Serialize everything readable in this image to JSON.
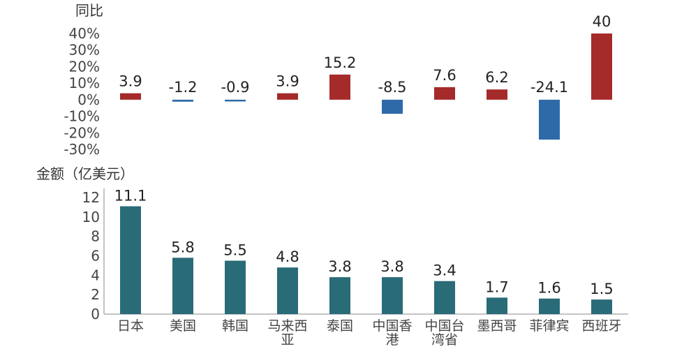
{
  "chart_data": [
    {
      "type": "bar",
      "ylabel": "同比",
      "yunit": "%",
      "ylim": [
        -30,
        40
      ],
      "yticks": [
        40,
        30,
        20,
        10,
        0,
        -10,
        -20,
        -30
      ],
      "categories": [
        "日本",
        "美国",
        "韩国",
        "马来西亚",
        "泰国",
        "中国香港",
        "中国台湾省",
        "墨西哥",
        "菲律宾",
        "西班牙"
      ],
      "values": [
        3.9,
        -1.2,
        -0.9,
        3.9,
        15.2,
        -8.5,
        7.6,
        6.2,
        -24.1,
        40
      ],
      "labels": [
        "3.9",
        "-1.2",
        "-0.9",
        "3.9",
        "15.2",
        "-8.5",
        "7.6",
        "6.2",
        "-24.1",
        "40"
      ],
      "colors": {
        "positive": "#a52a2a",
        "negative": "#2e6aa8"
      },
      "grid": false
    },
    {
      "type": "bar",
      "ylabel": "金额（亿美元）",
      "ylim": [
        0,
        12
      ],
      "yticks": [
        12,
        10,
        8,
        6,
        4,
        2,
        0
      ],
      "categories": [
        "日本",
        "美国",
        "韩国",
        "马来西亚",
        "泰国",
        "中国香港",
        "中国台湾省",
        "墨西哥",
        "菲律宾",
        "西班牙"
      ],
      "category_lines": [
        [
          "日本"
        ],
        [
          "美国"
        ],
        [
          "韩国"
        ],
        [
          "马来西",
          "亚"
        ],
        [
          "泰国"
        ],
        [
          "中国香",
          "港"
        ],
        [
          "中国台",
          "湾省"
        ],
        [
          "墨西哥"
        ],
        [
          "菲律宾"
        ],
        [
          "西班牙"
        ]
      ],
      "values": [
        11.1,
        5.8,
        5.5,
        4.8,
        3.8,
        3.8,
        3.4,
        1.7,
        1.6,
        1.5
      ],
      "labels": [
        "11.1",
        "5.8",
        "5.5",
        "4.8",
        "3.8",
        "3.8",
        "3.4",
        "1.7",
        "1.6",
        "1.5"
      ],
      "color": "#2a6b78",
      "grid": false
    }
  ]
}
